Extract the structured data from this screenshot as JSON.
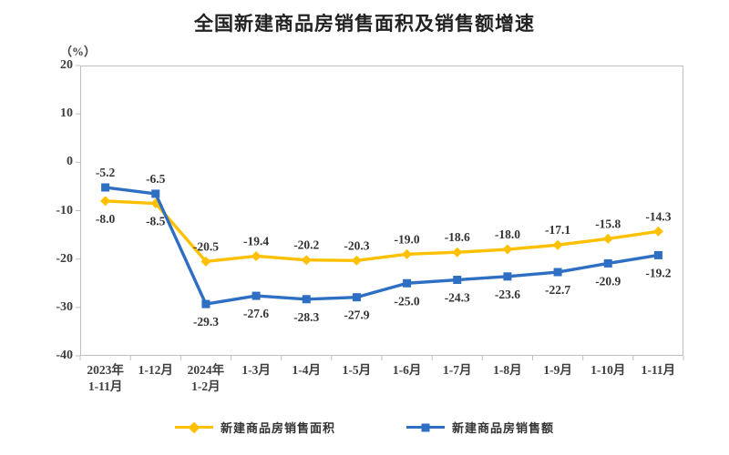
{
  "title": "全国新建商品房销售面积及销售额增速",
  "y_unit": "（%）",
  "colors": {
    "area_series": "#FFC000",
    "amount_series": "#2E6FC4",
    "axis": "#BFBFBF",
    "text": "#3d3d3d"
  },
  "chart_data": {
    "type": "line",
    "categories": [
      "2023年\n1-11月",
      "1-12月",
      "2024年\n1-2月",
      "1-3月",
      "1-4月",
      "1-5月",
      "1-6月",
      "1-7月",
      "1-8月",
      "1-9月",
      "1-10月",
      "1-11月"
    ],
    "series": [
      {
        "name": "新建商品房销售面积",
        "color": "#FFC000",
        "marker": "diamond",
        "values": [
          -8.0,
          -8.5,
          -20.5,
          -19.4,
          -20.2,
          -20.3,
          -19.0,
          -18.6,
          -18.0,
          -17.1,
          -15.8,
          -14.3
        ],
        "label_sides": [
          "below",
          "below",
          "above",
          "above",
          "above",
          "above",
          "above",
          "above",
          "above",
          "above",
          "above",
          "above"
        ]
      },
      {
        "name": "新建商品房销售额",
        "color": "#2E6FC4",
        "marker": "square",
        "values": [
          -5.2,
          -6.5,
          -29.3,
          -27.6,
          -28.3,
          -27.9,
          -25.0,
          -24.3,
          -23.6,
          -22.7,
          -20.9,
          -19.2
        ],
        "label_sides": [
          "above",
          "above",
          "below",
          "below",
          "below",
          "below",
          "below",
          "below",
          "below",
          "below",
          "below",
          "below"
        ]
      }
    ],
    "title": "全国新建商品房销售面积及销售额增速",
    "ylabel": "（%）",
    "xlabel": "",
    "ylim": [
      -40,
      20
    ],
    "yticks": [
      20,
      10,
      0,
      -10,
      -20,
      -30,
      -40
    ],
    "grid": false,
    "legend_position": "bottom"
  }
}
